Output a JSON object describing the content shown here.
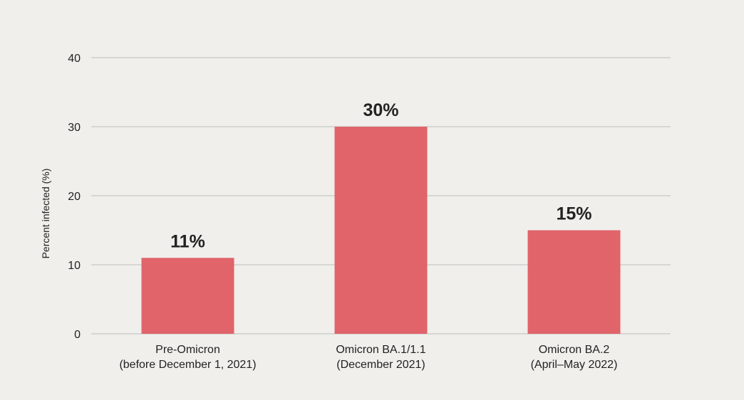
{
  "chart_data": {
    "type": "bar",
    "title": "",
    "xlabel": "",
    "ylabel": "Percent infected (%)",
    "ylim": [
      0,
      40
    ],
    "yticks": [
      0,
      10,
      20,
      30,
      40
    ],
    "grid": true,
    "categories": [
      [
        "Pre-Omicron",
        "(before December 1, 2021)"
      ],
      [
        "Omicron BA.1/1.1",
        "(December 2021)"
      ],
      [
        "Omicron BA.2",
        "(April–May 2022)"
      ]
    ],
    "values": [
      11,
      30,
      15
    ],
    "data_labels": [
      "11%",
      "30%",
      "15%"
    ],
    "colors": {
      "bar": "#e0646a",
      "grid": "#bdbdbd",
      "background": "#f0efeb",
      "text": "#222222"
    }
  }
}
